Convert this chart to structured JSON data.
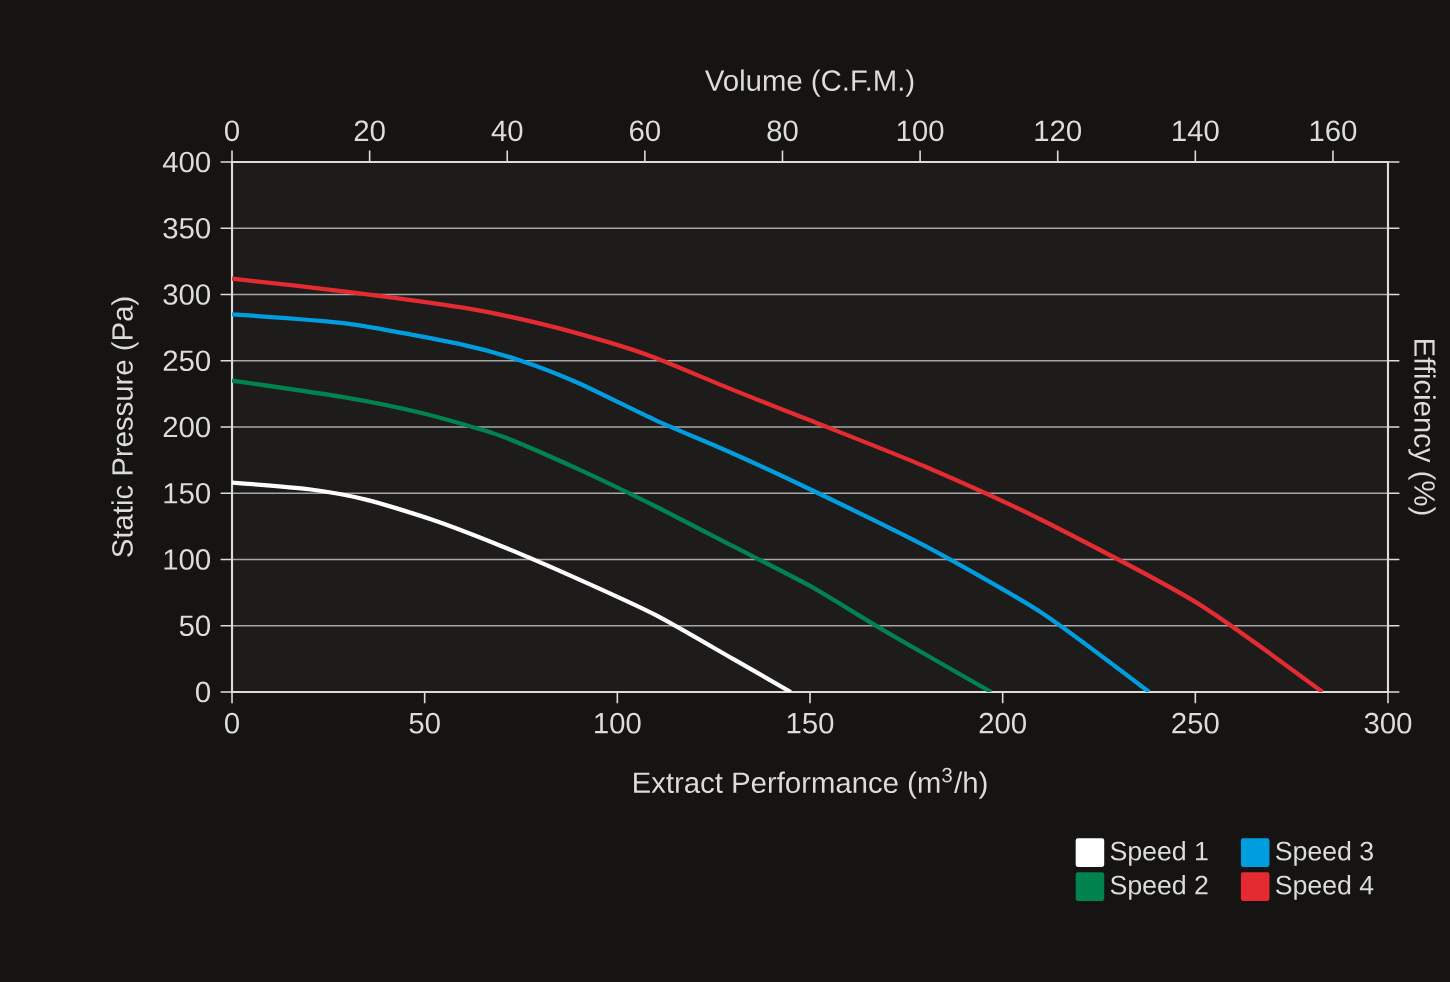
{
  "chart_data": {
    "type": "line",
    "title": null,
    "xlabel": "Extract Performance (m$^{3}$/h)",
    "ylabel": "Static Pressure (Pa)",
    "y2label": "Efficiency (%)",
    "x2label": "Volume (C.F.M.)",
    "xlim": [
      0,
      300
    ],
    "xticks": [
      0,
      50,
      100,
      150,
      200,
      250,
      300
    ],
    "x2lim": [
      0,
      168
    ],
    "x2ticks": [
      0,
      20,
      40,
      60,
      80,
      100,
      120,
      140,
      160
    ],
    "ylim": [
      0,
      400
    ],
    "yticks": [
      0,
      50,
      100,
      150,
      200,
      250,
      300,
      350,
      400
    ],
    "grid": "y",
    "legend": "bottom right",
    "marker": "none",
    "line_style": "solid",
    "series": [
      {
        "name": "Speed 1",
        "color": "#ffffff",
        "x": [
          0,
          20,
          35,
          52,
          70,
          90,
          110,
          130,
          145
        ],
        "values": [
          158,
          153,
          145,
          130,
          110,
          85,
          58,
          25,
          0
        ]
      },
      {
        "name": "Speed 2",
        "color": "#00834e",
        "x": [
          0,
          30,
          50,
          70,
          90,
          110,
          130,
          150,
          170,
          197
        ],
        "values": [
          235,
          222,
          210,
          193,
          168,
          140,
          110,
          80,
          45,
          0
        ]
      },
      {
        "name": "Speed 3",
        "color": "#009ee0",
        "x": [
          0,
          30,
          60,
          75,
          90,
          110,
          130,
          150,
          180,
          210,
          238
        ],
        "values": [
          285,
          278,
          262,
          250,
          233,
          205,
          180,
          153,
          110,
          60,
          0
        ]
      },
      {
        "name": "Speed 4",
        "color": "#e42b32",
        "x": [
          0,
          30,
          60,
          80,
          100,
          110,
          130,
          150,
          180,
          210,
          250,
          283
        ],
        "values": [
          312,
          302,
          290,
          278,
          262,
          252,
          228,
          205,
          170,
          130,
          68,
          0
        ]
      }
    ]
  }
}
